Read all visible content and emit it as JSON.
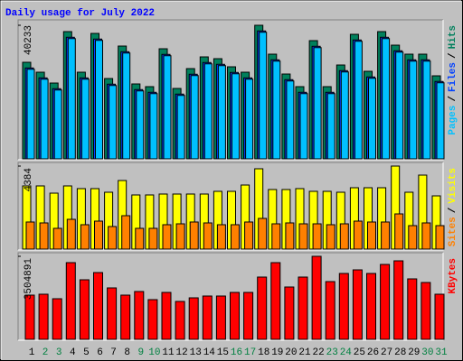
{
  "title": "Daily usage for July 2022",
  "days": [
    "1",
    "2",
    "3",
    "4",
    "5",
    "6",
    "7",
    "8",
    "9",
    "10",
    "11",
    "12",
    "13",
    "14",
    "15",
    "16",
    "17",
    "18",
    "19",
    "20",
    "21",
    "22",
    "23",
    "24",
    "25",
    "26",
    "27",
    "28",
    "29",
    "30",
    "31"
  ],
  "day_colors": [
    "#000000",
    "#008040",
    "#008040",
    "#000000",
    "#000000",
    "#000000",
    "#000000",
    "#000000",
    "#008040",
    "#008040",
    "#000000",
    "#000000",
    "#000000",
    "#000000",
    "#000000",
    "#008040",
    "#008040",
    "#000000",
    "#000000",
    "#000000",
    "#000000",
    "#000000",
    "#008040",
    "#008040",
    "#000000",
    "#000000",
    "#000000",
    "#000000",
    "#000000",
    "#008040",
    "#008040"
  ],
  "legend_separator": "/",
  "chart_data": [
    {
      "type": "bar",
      "ylim": [
        0,
        40233
      ],
      "yticks": [
        40233
      ],
      "series": [
        {
          "name": "Hits",
          "color": "#00805c",
          "values": [
            29083,
            26093,
            22831,
            38324,
            26093,
            37780,
            24190,
            33975,
            22559,
            21744,
            33160,
            21200,
            27180,
            30713,
            30170,
            27724,
            26093,
            40233,
            31529,
            25549,
            21744,
            35606,
            21744,
            28267,
            37508,
            26365,
            38324,
            34247,
            31529,
            31529,
            25006
          ]
        },
        {
          "name": "Files",
          "color": "#0040ff",
          "values": [
            27380,
            24390,
            21130,
            36620,
            24390,
            36080,
            22490,
            32270,
            20860,
            20040,
            31460,
            19500,
            25480,
            29010,
            28470,
            26020,
            24390,
            38530,
            29830,
            23850,
            20040,
            33900,
            20040,
            26570,
            35810,
            24670,
            36620,
            32550,
            29830,
            29830,
            23310
          ]
        },
        {
          "name": "Pages",
          "color": "#00c0ff",
          "values": [
            26980,
            23990,
            20730,
            36220,
            23990,
            35680,
            22090,
            31870,
            20460,
            19640,
            31060,
            19100,
            25080,
            28610,
            28070,
            25620,
            23990,
            38130,
            29430,
            23450,
            19640,
            33500,
            19640,
            26170,
            35410,
            24270,
            36220,
            32150,
            29430,
            29430,
            22910
          ]
        }
      ]
    },
    {
      "type": "bar",
      "ylim": [
        0,
        4384
      ],
      "yticks": [
        4384
      ],
      "series": [
        {
          "name": "Visits",
          "color": "#ffff00",
          "values": [
            3336,
            3336,
            2954,
            3336,
            3193,
            3193,
            3002,
            3621,
            2859,
            2859,
            2907,
            2907,
            2907,
            2907,
            3050,
            3050,
            3383,
            4241,
            3145,
            3145,
            3193,
            3050,
            3050,
            3002,
            3240,
            3240,
            3240,
            4384,
            3002,
            3907,
            2811
          ]
        },
        {
          "name": "Sites",
          "color": "#ff8000",
          "values": [
            1430,
            1382,
            1096,
            1572,
            1287,
            1477,
            1191,
            1763,
            1096,
            1096,
            1287,
            1334,
            1430,
            1382,
            1287,
            1287,
            1430,
            1620,
            1334,
            1382,
            1334,
            1334,
            1287,
            1334,
            1477,
            1430,
            1430,
            1858,
            1239,
            1382,
            1239
          ]
        }
      ]
    },
    {
      "type": "bar",
      "ylim": [
        0,
        3504891
      ],
      "yticks": [
        3504891
      ],
      "series": [
        {
          "name": "KBytes",
          "color": "#ff0000",
          "values": [
            1866753,
            1904850,
            1714365,
            3238245,
            2514402,
            2819178,
            2171529,
            1866753,
            2019141,
            1676268,
            1981044,
            1600074,
            1752462,
            1828656,
            1828656,
            1981044,
            1981044,
            2628693,
            3238245,
            2209626,
            2628693,
            3504891,
            2438208,
            2781081,
            2933469,
            2781081,
            3162051,
            3314439,
            2552499,
            2400111,
            1904850
          ]
        }
      ]
    }
  ]
}
